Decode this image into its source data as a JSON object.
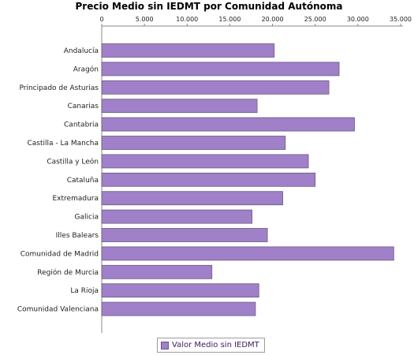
{
  "chart_data": {
    "type": "bar",
    "orientation": "horizontal",
    "title": "Precio Medio sin IEDMT por Comunidad Autónoma",
    "categories": [
      "Andalucía",
      "Aragón",
      "Principado de Asturias",
      "Canarias",
      "Cantabria",
      "Castilla - La Mancha",
      "Castilla y León",
      "Cataluña",
      "Extremadura",
      "Galicia",
      "Illes Balears",
      "Comunidad de Madrid",
      "Región de Murcia",
      "La Rioja",
      "Comunidad Valenciana"
    ],
    "series": [
      {
        "name": "Valor Medio sin IEDMT",
        "color": "#a080c8",
        "values": [
          20200,
          27800,
          26600,
          18200,
          29600,
          21500,
          24200,
          25000,
          21200,
          17600,
          19400,
          34200,
          12900,
          18400,
          18000
        ]
      }
    ],
    "xlim": [
      0,
      35000
    ],
    "x_ticks": [
      0,
      5000,
      10000,
      15000,
      20000,
      25000,
      30000,
      35000
    ],
    "x_tick_labels": [
      "0",
      "5.000",
      "10.000",
      "15.000",
      "20.000",
      "25.000",
      "30.000",
      "35.000"
    ],
    "x_axis_position": "top",
    "grid": false,
    "legend_position": "bottom-center"
  }
}
